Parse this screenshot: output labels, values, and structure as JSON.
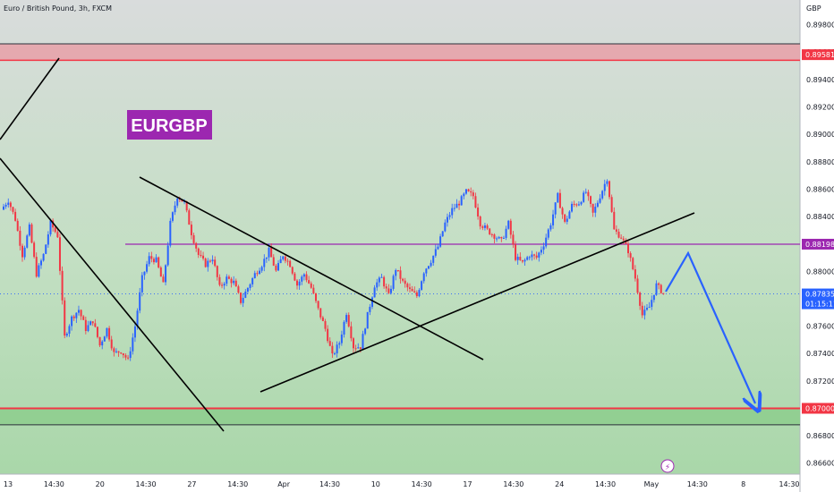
{
  "header": {
    "title": "Euro / British Pound, 3h, FXCM",
    "currency": "GBP"
  },
  "symbol_label": "EURGBP",
  "colors": {
    "bull": "#2962ff",
    "bear": "#f23645",
    "resistance_zone": "#e8a0a8",
    "support_zone": "#8fcd8f",
    "purple_line": "#9c27b0",
    "label_bg": "#9c27b0",
    "projection": "#2962ff"
  },
  "chart_data": {
    "type": "candlestick",
    "title": "Euro / British Pound, 3h, FXCM",
    "y_axis_label": "GBP",
    "ylim": [
      0.8652,
      0.8998
    ],
    "y_ticks": [
      "0.89800",
      "0.89600",
      "0.89400",
      "0.89200",
      "0.89000",
      "0.88800",
      "0.88600",
      "0.88400",
      "0.88200",
      "0.88000",
      "0.87800",
      "0.87600",
      "0.87400",
      "0.87200",
      "0.87000",
      "0.86800",
      "0.86600"
    ],
    "x_ticks": [
      "13",
      "14:30",
      "20",
      "14:30",
      "27",
      "14:30",
      "Apr",
      "14:30",
      "10",
      "14:30",
      "17",
      "14:30",
      "24",
      "14:30",
      "May",
      "14:30",
      "8",
      "14:30"
    ],
    "price_labels": [
      {
        "value": "0.89581",
        "kind": "resistance"
      },
      {
        "value": "0.88198",
        "kind": "level"
      },
      {
        "value": "0.87835",
        "kind": "current"
      },
      {
        "value": "01:15:11",
        "kind": "countdown"
      },
      {
        "value": "0.87000",
        "kind": "support"
      }
    ],
    "current_price": 0.87835,
    "levels": {
      "resistance_zone": [
        0.8954,
        0.8966
      ],
      "purple_level": 0.88198,
      "support_zone": [
        0.8688,
        0.87
      ]
    },
    "price_path": [
      0.8845,
      0.8852,
      0.8838,
      0.8812,
      0.8832,
      0.8798,
      0.8812,
      0.8835,
      0.8826,
      0.8752,
      0.8766,
      0.8772,
      0.8758,
      0.8764,
      0.8746,
      0.8758,
      0.874,
      0.8742,
      0.8735,
      0.876,
      0.8795,
      0.881,
      0.8808,
      0.879,
      0.8835,
      0.8855,
      0.885,
      0.8828,
      0.8812,
      0.8805,
      0.881,
      0.8788,
      0.8795,
      0.8792,
      0.8778,
      0.8788,
      0.8798,
      0.8805,
      0.8815,
      0.88,
      0.8812,
      0.8805,
      0.879,
      0.8798,
      0.8788,
      0.8772,
      0.8758,
      0.8738,
      0.8748,
      0.877,
      0.8745,
      0.8745,
      0.8768,
      0.879,
      0.8795,
      0.8782,
      0.8802,
      0.8792,
      0.8786,
      0.8782,
      0.88,
      0.8808,
      0.8818,
      0.8835,
      0.8845,
      0.885,
      0.8858,
      0.8855,
      0.8835,
      0.883,
      0.8826,
      0.8822,
      0.8835,
      0.881,
      0.8806,
      0.8812,
      0.881,
      0.882,
      0.8835,
      0.8855,
      0.8835,
      0.8848,
      0.885,
      0.8858,
      0.8842,
      0.8855,
      0.8868,
      0.883,
      0.8825,
      0.8815,
      0.8795,
      0.8768,
      0.8774,
      0.879,
      0.8784
    ]
  }
}
